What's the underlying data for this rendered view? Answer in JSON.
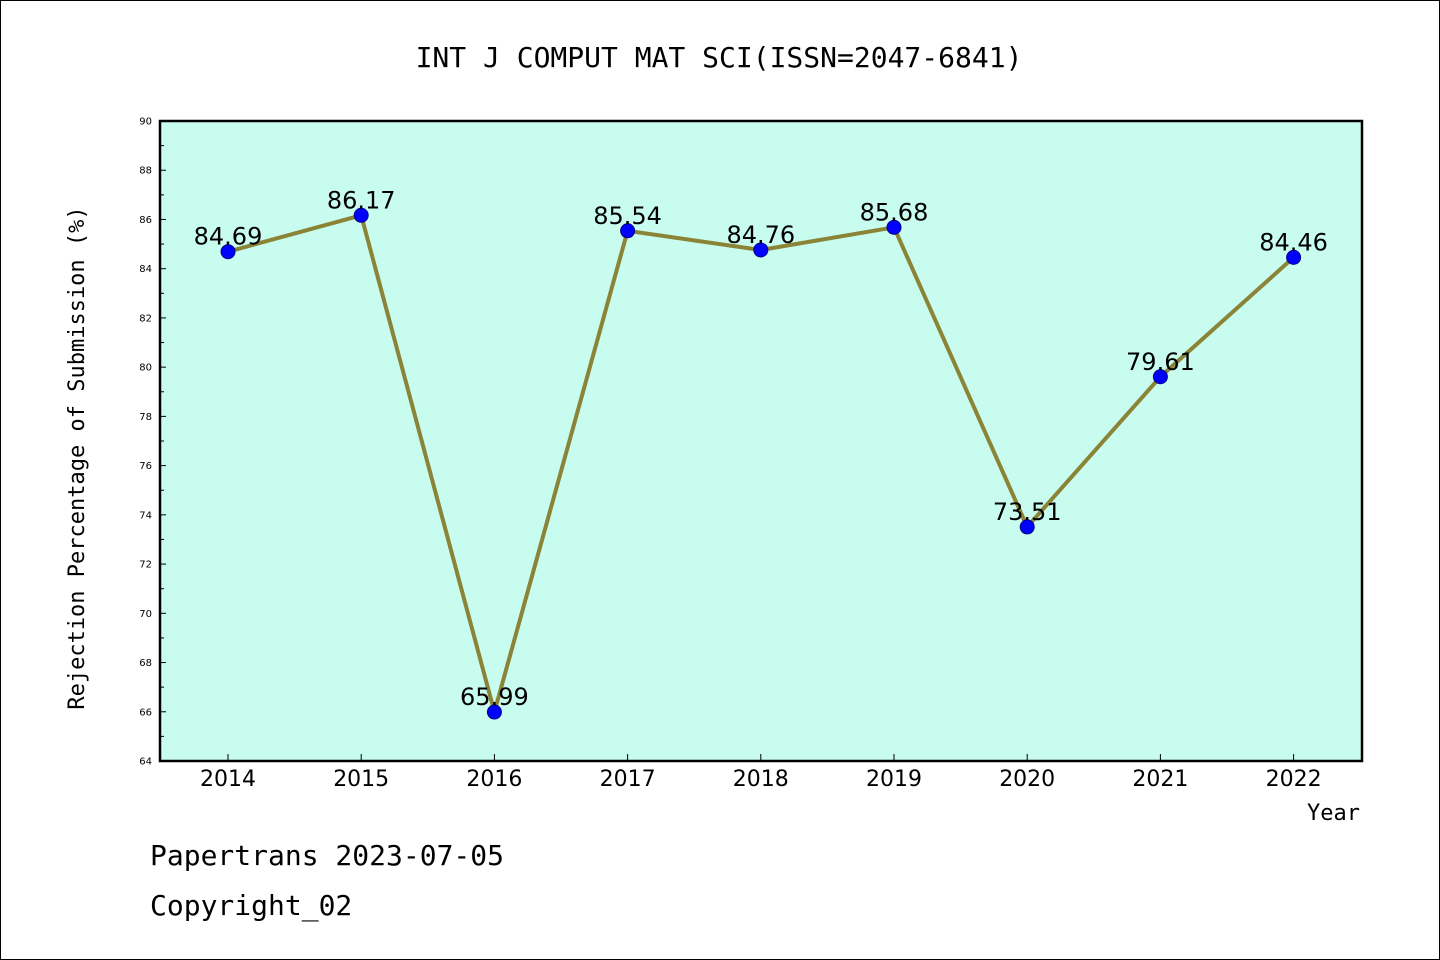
{
  "chart_data": {
    "type": "line",
    "title": "INT J COMPUT MAT SCI(ISSN=2047-6841)",
    "xlabel": "Year",
    "ylabel": "Rejection Percentage of Submission (%)",
    "categories": [
      "2014",
      "2015",
      "2016",
      "2017",
      "2018",
      "2019",
      "2020",
      "2021",
      "2022"
    ],
    "values": [
      84.69,
      86.17,
      65.99,
      85.54,
      84.76,
      85.68,
      73.51,
      79.61,
      84.46
    ],
    "data_labels": [
      "84.69",
      "86.17",
      "65.99",
      "85.54",
      "84.76",
      "85.68",
      "73.51",
      "79.61",
      "84.46"
    ],
    "ylim": [
      64,
      90
    ],
    "y_major_ticks": [
      "64",
      "66",
      "68",
      "70",
      "72",
      "74",
      "76",
      "78",
      "80",
      "82",
      "84",
      "86",
      "88",
      "90"
    ],
    "grid": false,
    "legend": "none"
  },
  "colors": {
    "plot_background": "#c8fcee",
    "line": "#8b8437",
    "marker_fill": "#0000ff",
    "marker_edge": "#00008b",
    "axis": "#000000"
  },
  "footer": {
    "line1": "Papertrans 2023-07-05",
    "line2": "Copyright_02"
  }
}
